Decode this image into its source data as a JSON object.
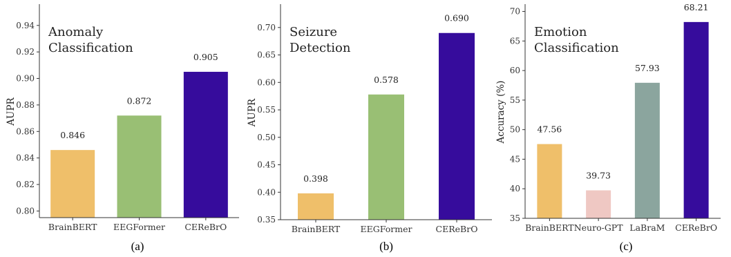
{
  "chart_data": [
    {
      "type": "bar",
      "title": "Anomaly Classification",
      "title_lines": [
        "Anomaly",
        "Classification"
      ],
      "ylabel": "AUPR",
      "categories": [
        "BrainBERT",
        "EEGFormer",
        "CEReBrO"
      ],
      "values": [
        0.846,
        0.872,
        0.905
      ],
      "value_labels": [
        "0.846",
        "0.872",
        "0.905"
      ],
      "colors": [
        "#efbf6a",
        "#99bf74",
        "#360c9c"
      ],
      "ylim": [
        0.795,
        0.955
      ],
      "yticks": [
        0.8,
        0.82,
        0.84,
        0.86,
        0.88,
        0.9,
        0.92,
        0.94
      ],
      "ytick_labels": [
        "0.80",
        "0.82",
        "0.84",
        "0.86",
        "0.88",
        "0.90",
        "0.92",
        "0.94"
      ],
      "caption": "(a)",
      "grid": false
    },
    {
      "type": "bar",
      "title": "Seizure Detection",
      "title_lines": [
        "Seizure",
        "Detection"
      ],
      "ylabel": "AUPR",
      "categories": [
        "BrainBERT",
        "EEGFormer",
        "CEReBrO"
      ],
      "values": [
        0.398,
        0.578,
        0.69
      ],
      "value_labels": [
        "0.398",
        "0.578",
        "0.690"
      ],
      "colors": [
        "#efbf6a",
        "#99bf74",
        "#360c9c"
      ],
      "ylim": [
        0.35,
        0.74
      ],
      "yticks": [
        0.35,
        0.4,
        0.45,
        0.5,
        0.55,
        0.6,
        0.65,
        0.7
      ],
      "ytick_labels": [
        "0.35",
        "0.40",
        "0.45",
        "0.50",
        "0.55",
        "0.60",
        "0.65",
        "0.70"
      ],
      "caption": "(b)",
      "grid": false
    },
    {
      "type": "bar",
      "title": "Emotion Classification",
      "title_lines": [
        "Emotion",
        "Classification"
      ],
      "ylabel": "Accuracy (%)",
      "categories": [
        "BrainBERT",
        "Neuro-GPT",
        "LaBraM",
        "CEReBrO"
      ],
      "values": [
        47.56,
        39.73,
        57.93,
        68.21
      ],
      "value_labels": [
        "47.56",
        "39.73",
        "57.93",
        "68.21"
      ],
      "colors": [
        "#efbf6a",
        "#efc8c3",
        "#8ba59e",
        "#360c9c"
      ],
      "ylim": [
        35,
        71
      ],
      "yticks": [
        35,
        40,
        45,
        50,
        55,
        60,
        65,
        70
      ],
      "ytick_labels": [
        "35",
        "40",
        "45",
        "50",
        "55",
        "60",
        "65",
        "70"
      ],
      "caption": "(c)",
      "grid": false
    }
  ]
}
